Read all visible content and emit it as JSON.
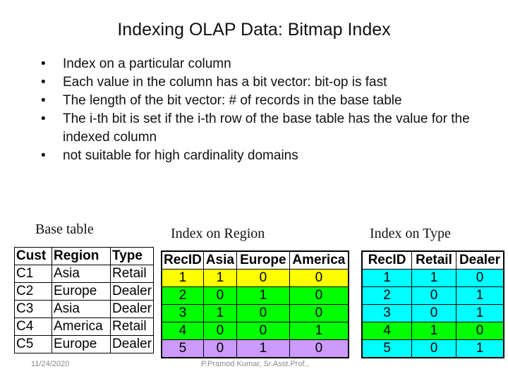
{
  "title": "Indexing OLAP Data: Bitmap Index",
  "bullets": [
    "Index on a particular column",
    "Each value in the column has a bit vector: bit-op is fast",
    "The length of the bit vector: # of records in the base table",
    "The i-th bit is set if the i-th row of the base table has the value for the indexed column",
    "not suitable for high cardinality domains"
  ],
  "captions": {
    "base": "Base table",
    "region": "Index on Region",
    "type": "Index on Type"
  },
  "base_table": {
    "headers": [
      "Cust",
      "Region",
      "Type"
    ],
    "rows": [
      [
        "C1",
        "Asia",
        "Retail"
      ],
      [
        "C2",
        "Europe",
        "Dealer"
      ],
      [
        "C3",
        "Asia",
        "Dealer"
      ],
      [
        "C4",
        "America",
        "Retail"
      ],
      [
        "C5",
        "Europe",
        "Dealer"
      ]
    ]
  },
  "region_index": {
    "headers": [
      "RecID",
      "Asia",
      "Europe",
      "America"
    ],
    "rows": [
      [
        "1",
        "1",
        "0",
        "0"
      ],
      [
        "2",
        "0",
        "1",
        "0"
      ],
      [
        "3",
        "1",
        "0",
        "0"
      ],
      [
        "4",
        "0",
        "0",
        "1"
      ],
      [
        "5",
        "0",
        "1",
        "0"
      ]
    ]
  },
  "type_index": {
    "headers": [
      "RecID",
      "Retail",
      "Dealer"
    ],
    "rows": [
      [
        "1",
        "1",
        "0"
      ],
      [
        "2",
        "0",
        "1"
      ],
      [
        "3",
        "0",
        "1"
      ],
      [
        "4",
        "1",
        "0"
      ],
      [
        "5",
        "0",
        "1"
      ]
    ]
  },
  "colors": {
    "region_rows": [
      "#ffff00",
      "#00ff00",
      "#00ff00",
      "#00ff00",
      "#cc99ff"
    ],
    "type_rows": [
      "#00ffff",
      "#00ffff",
      "#00ffff",
      "#00ff00",
      "#00ffff"
    ]
  },
  "footer": {
    "date": "11/24/2020",
    "author": "P.Pramod Kumar, Sr.Asst.Prof.,"
  }
}
